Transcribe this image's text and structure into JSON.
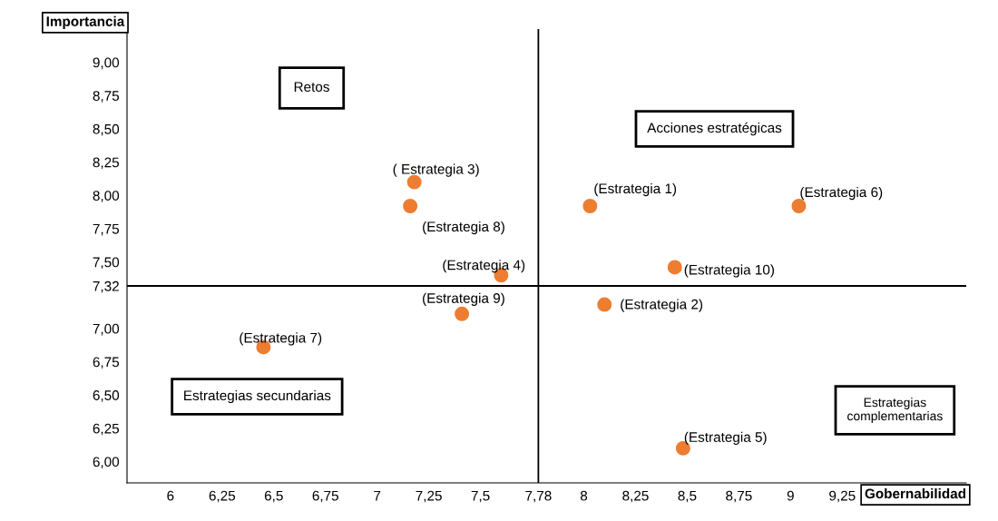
{
  "chart_data": {
    "type": "scatter",
    "xlabel": "Gobernabilidad",
    "ylabel": "Importancia",
    "x": [
      7.18,
      7.16,
      8.03,
      9.04,
      7.6,
      8.44,
      7.41,
      8.1,
      6.45,
      8.48
    ],
    "series": [
      {
        "color": "#ed7d31",
        "values": [
          8.1,
          7.92,
          7.92,
          7.92,
          7.4,
          7.46,
          7.11,
          7.18,
          6.86,
          6.1
        ]
      }
    ],
    "marker": "circle",
    "grid": false,
    "xlim": [
      5.79,
      9.85
    ],
    "ylim": [
      5.84,
      9.25
    ],
    "xticks": [
      {
        "value": 6,
        "label": "6"
      },
      {
        "value": 6.25,
        "label": "6,25"
      },
      {
        "value": 6.5,
        "label": "6,5"
      },
      {
        "value": 6.75,
        "label": "6,75"
      },
      {
        "value": 7,
        "label": "7"
      },
      {
        "value": 7.25,
        "label": "7,25"
      },
      {
        "value": 7.5,
        "label": "7,5"
      },
      {
        "value": 7.78,
        "label": "7,78"
      },
      {
        "value": 8,
        "label": "8"
      },
      {
        "value": 8.25,
        "label": "8,25"
      },
      {
        "value": 8.5,
        "label": "8,5"
      },
      {
        "value": 8.75,
        "label": "8,75"
      },
      {
        "value": 9,
        "label": "9"
      },
      {
        "value": 9.25,
        "label": "9,25"
      }
    ],
    "yticks": [
      {
        "value": 6,
        "label": "6,00"
      },
      {
        "value": 6.25,
        "label": "6,25"
      },
      {
        "value": 6.5,
        "label": "6,50"
      },
      {
        "value": 6.75,
        "label": "6,75"
      },
      {
        "value": 7,
        "label": "7,00"
      },
      {
        "value": 7.32,
        "label": "7,32"
      },
      {
        "value": 7.5,
        "label": "7,50"
      },
      {
        "value": 7.75,
        "label": "7,75"
      },
      {
        "value": 8,
        "label": "8,00"
      },
      {
        "value": 8.25,
        "label": "8,25"
      },
      {
        "value": 8.5,
        "label": "8,50"
      },
      {
        "value": 8.75,
        "label": "8,75"
      },
      {
        "value": 9,
        "label": "9,00"
      }
    ],
    "ref_lines": [
      {
        "axis": "x",
        "value": 7.78,
        "color": "#000000",
        "line_style": "solid"
      },
      {
        "axis": "y",
        "value": 7.32,
        "color": "#000000",
        "line_style": "solid"
      }
    ],
    "annotations": [
      "Retos",
      "Acciones estratégicas",
      "Estrategias secundarias",
      "Estrategias\ncomplementarias",
      {
        "text": "( Estrategia 3)",
        "x": 7.18,
        "y": 8.1
      },
      {
        "text": "(Estrategia 8)",
        "x": 7.16,
        "y": 7.92
      },
      {
        "text": "(Estrategia 1)",
        "x": 8.03,
        "y": 7.92
      },
      {
        "text": "(Estrategia 6)",
        "x": 9.04,
        "y": 7.92
      },
      {
        "text": "(Estrategia 4)",
        "x": 7.6,
        "y": 7.4
      },
      {
        "text": "(Estrategia 10)",
        "x": 8.44,
        "y": 7.46
      },
      {
        "text": "(Estrategia 9)",
        "x": 7.41,
        "y": 7.11
      },
      {
        "text": "(Estrategia 2)",
        "x": 8.1,
        "y": 7.18
      },
      {
        "text": "(Estrategia 7)",
        "x": 6.45,
        "y": 6.86
      },
      {
        "text": "(Estrategia 5)",
        "x": 8.48,
        "y": 6.1
      }
    ]
  }
}
